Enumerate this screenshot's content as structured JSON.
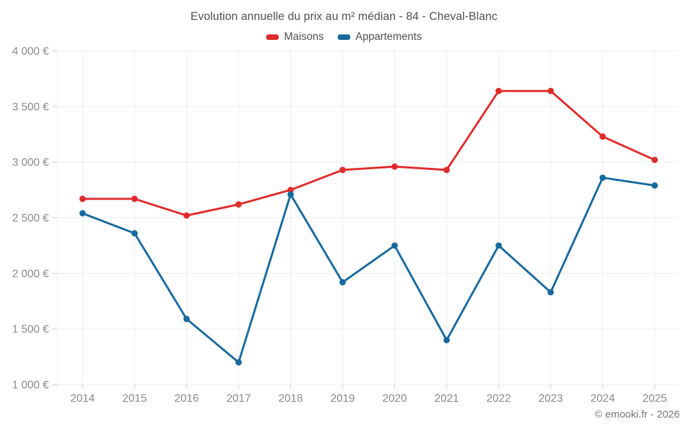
{
  "header": {
    "title": "Evolution annuelle du prix au m² médian - 84 - Cheval-Blanc"
  },
  "footer": {
    "credit": "© emooki.fr - 2026"
  },
  "chart_data": {
    "type": "line",
    "title": "Evolution annuelle du prix au m² médian - 84 - Cheval-Blanc",
    "x": [
      "2014",
      "2015",
      "2016",
      "2017",
      "2018",
      "2019",
      "2020",
      "2021",
      "2022",
      "2023",
      "2024",
      "2025"
    ],
    "series": [
      {
        "name": "Maisons",
        "color": "#e02b2b",
        "values": [
          2670,
          2670,
          2520,
          2620,
          2750,
          2930,
          2960,
          2930,
          3640,
          3640,
          3230,
          3020
        ]
      },
      {
        "name": "Appartements",
        "color": "#17699e",
        "values": [
          2540,
          2360,
          1590,
          1200,
          2710,
          1920,
          2250,
          1400,
          2250,
          1830,
          2860,
          2790
        ]
      }
    ],
    "ylim": [
      1000,
      4000
    ],
    "yticks": [
      1000,
      1500,
      2000,
      2500,
      3000,
      3500,
      4000
    ],
    "ytick_labels": [
      "1 000 €",
      "1 500 €",
      "2 000 €",
      "2 500 €",
      "3 000 €",
      "3 500 €",
      "4 000 €"
    ],
    "unit": "€",
    "grid": true,
    "legend_position": "top"
  },
  "colors": {
    "grid": "#ececec",
    "tick": "#c9c9c9",
    "axis_text": "#8a8a8a",
    "title_text": "#4f4f4f",
    "credit_text": "#757575"
  }
}
